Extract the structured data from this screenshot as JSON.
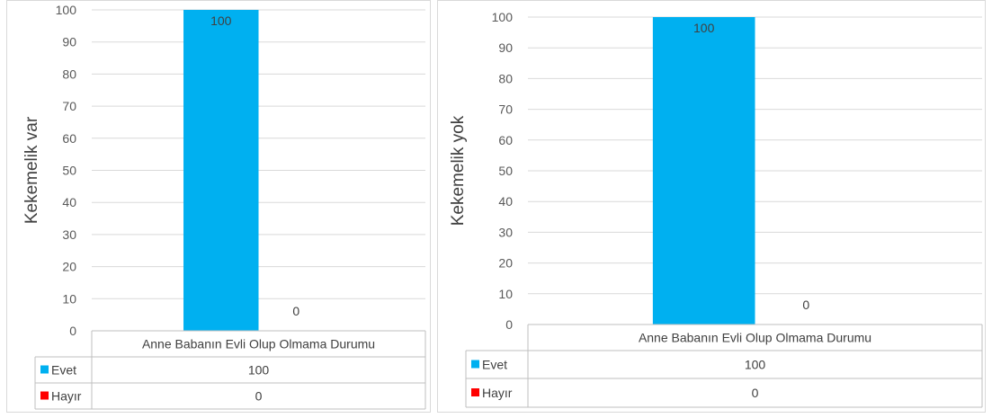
{
  "chart_data": [
    {
      "type": "bar",
      "ylabel": "Kekemelik var",
      "xlabel": "",
      "categories": [
        "Anne Babanın Evli Olup Olmama Durumu"
      ],
      "series": [
        {
          "name": "Evet",
          "values": [
            100
          ],
          "color": "#00b0f0"
        },
        {
          "name": "Hayır",
          "values": [
            0
          ],
          "color": "#ff0000"
        }
      ],
      "ylim": [
        0,
        100
      ],
      "yticks": [
        0,
        10,
        20,
        30,
        40,
        50,
        60,
        70,
        80,
        90,
        100
      ],
      "grid": true,
      "legend": "data-table-below"
    },
    {
      "type": "bar",
      "ylabel": "Kekemelik yok",
      "xlabel": "",
      "categories": [
        "Anne Babanın Evli Olup Olmama Durumu"
      ],
      "series": [
        {
          "name": "Evet",
          "values": [
            100
          ],
          "color": "#00b0f0"
        },
        {
          "name": "Hayır",
          "values": [
            0
          ],
          "color": "#ff0000"
        }
      ],
      "ylim": [
        0,
        100
      ],
      "yticks": [
        0,
        10,
        20,
        30,
        40,
        50,
        60,
        70,
        80,
        90,
        100
      ],
      "grid": true,
      "legend": "data-table-below"
    }
  ]
}
